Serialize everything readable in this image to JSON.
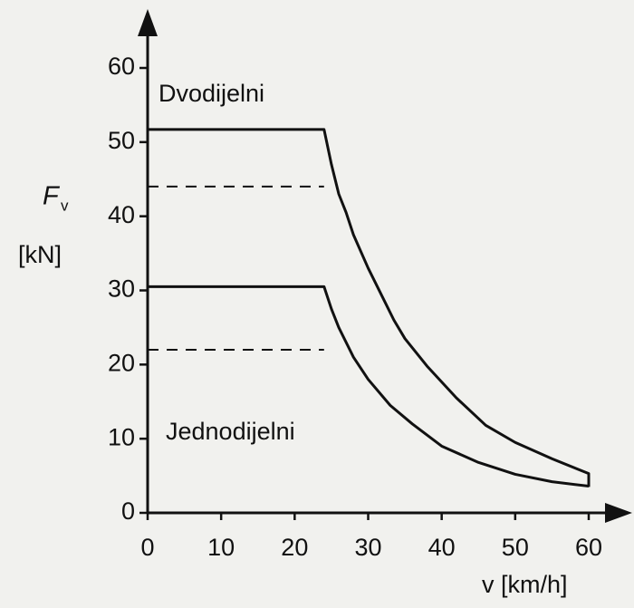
{
  "chart_data": {
    "type": "line",
    "xlabel": "v [km/h]",
    "ylabel": {
      "symbol": "F",
      "subscript": "v",
      "unit": "[kN]"
    },
    "annotations": [
      "Dvodijelni",
      "Jednodijelni"
    ],
    "series": [
      {
        "name": "Dvodijelni",
        "color": "#111111",
        "style": "solid",
        "x": [
          0,
          24,
          25,
          26,
          27,
          28,
          30,
          32,
          33.5,
          35,
          38,
          42,
          46,
          50,
          55,
          60,
          60
        ],
        "values": [
          51.7,
          51.7,
          47,
          43,
          40.5,
          37.5,
          33,
          29,
          26,
          23.5,
          19.8,
          15.5,
          11.8,
          9.5,
          7.3,
          5.3,
          3.5
        ]
      },
      {
        "name": "Jednodijelni",
        "color": "#111111",
        "style": "solid",
        "x": [
          0,
          24,
          25,
          26,
          28,
          30,
          33,
          36,
          40,
          45,
          50,
          55,
          60
        ],
        "values": [
          30.5,
          30.5,
          27.5,
          25,
          21,
          18,
          14.5,
          12,
          9,
          6.8,
          5.2,
          4.2,
          3.6
        ]
      },
      {
        "color": "#111111",
        "style": "dashed",
        "x": [
          0,
          24
        ],
        "values": [
          44,
          44
        ]
      },
      {
        "color": "#111111",
        "style": "dashed",
        "x": [
          0,
          24
        ],
        "values": [
          22,
          22
        ]
      }
    ],
    "xlim": [
      0,
      60
    ],
    "xticks": [
      0,
      10,
      20,
      30,
      40,
      50,
      60
    ],
    "ylim": [
      0,
      60
    ],
    "yticks": [
      0,
      10,
      20,
      30,
      40,
      50,
      60
    ],
    "grid": false
  }
}
